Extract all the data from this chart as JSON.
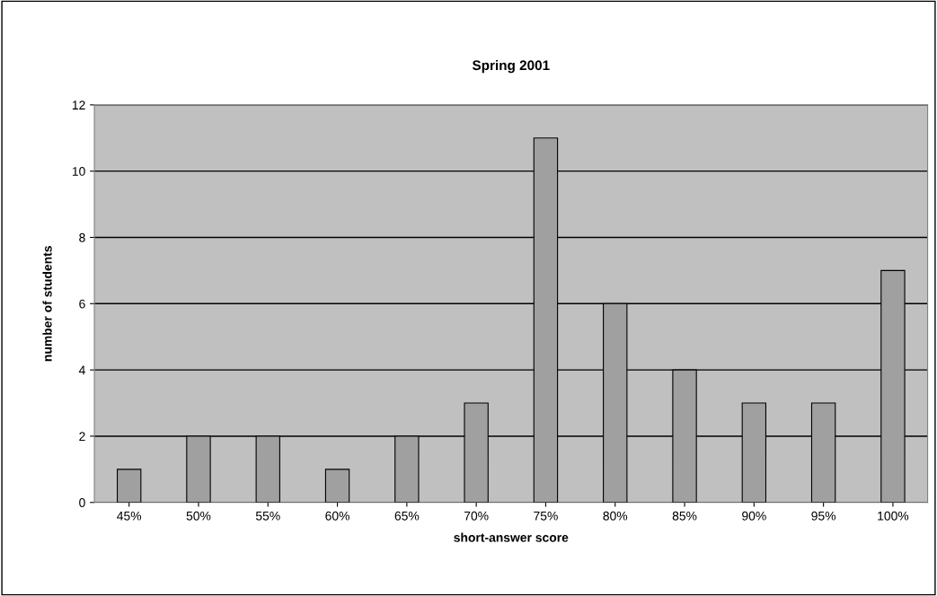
{
  "chart_data": {
    "type": "bar",
    "title": "Spring 2001",
    "xlabel": "short-answer score",
    "ylabel": "number of students",
    "categories": [
      "45%",
      "50%",
      "55%",
      "60%",
      "65%",
      "70%",
      "75%",
      "80%",
      "85%",
      "90%",
      "95%",
      "100%"
    ],
    "values": [
      1,
      2,
      2,
      1,
      2,
      3,
      11,
      6,
      4,
      3,
      3,
      7
    ],
    "color": "#a0a0a0",
    "ylim": [
      0,
      12
    ],
    "yticks": [
      0,
      2,
      4,
      6,
      8,
      10,
      12
    ],
    "grid": "y"
  }
}
